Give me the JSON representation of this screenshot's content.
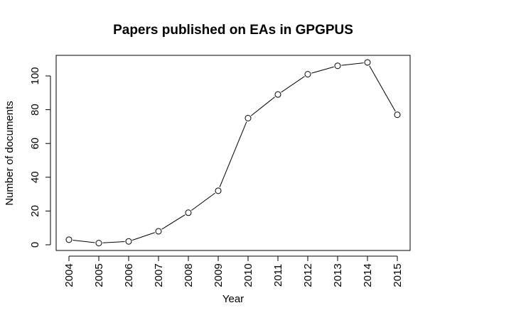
{
  "chart_data": {
    "type": "line",
    "title": "Papers published on EAs in GPGPUS",
    "xlabel": "Year",
    "ylabel": "Number of documents",
    "categories": [
      "2004",
      "2005",
      "2006",
      "2007",
      "2008",
      "2009",
      "2010",
      "2011",
      "2012",
      "2013",
      "2014",
      "2015"
    ],
    "values": [
      3,
      1,
      2,
      8,
      19,
      32,
      75,
      89,
      101,
      106,
      108,
      77
    ],
    "yticks": [
      0,
      20,
      40,
      60,
      80,
      100
    ],
    "ylim": [
      -3,
      111
    ],
    "grid": false,
    "marker": "open-circle",
    "line_color": "#000000",
    "background": "#ffffff"
  }
}
